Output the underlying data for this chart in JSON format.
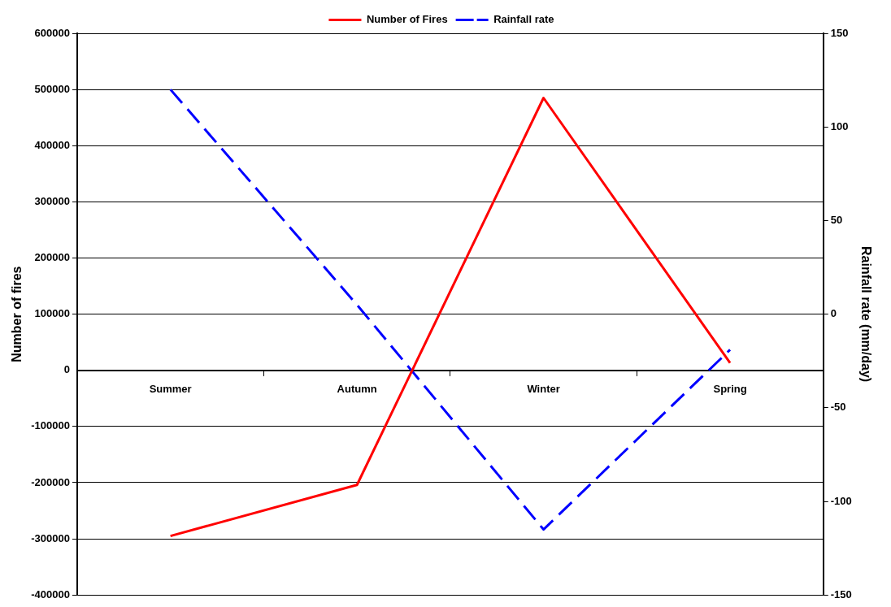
{
  "chart_data": {
    "type": "line",
    "categories": [
      "Summer",
      "Autumn",
      "Winter",
      "Spring"
    ],
    "ylabel": "Number of fires",
    "y2label": "Rainfall rate (mm/day)",
    "series": [
      {
        "name": "Number of Fires",
        "color": "#ff0000",
        "values": [
          -295000,
          -204000,
          485000,
          13000
        ],
        "line_style": "solid"
      },
      {
        "name": "Rainfall rate",
        "color": "#0000ff",
        "values": [
          120,
          5,
          -115,
          -19
        ],
        "axis": "y2",
        "line_style": "dashed"
      }
    ],
    "ylim": [
      -400000,
      600000
    ],
    "yticks": [
      -400000,
      -300000,
      -200000,
      -100000,
      0,
      100000,
      200000,
      300000,
      400000,
      500000,
      600000
    ],
    "y2lim": [
      -150,
      150
    ],
    "y2ticks": [
      -150,
      -100,
      -50,
      0,
      50,
      100,
      150
    ],
    "grid": "y",
    "legend": "top",
    "marker": "none"
  }
}
